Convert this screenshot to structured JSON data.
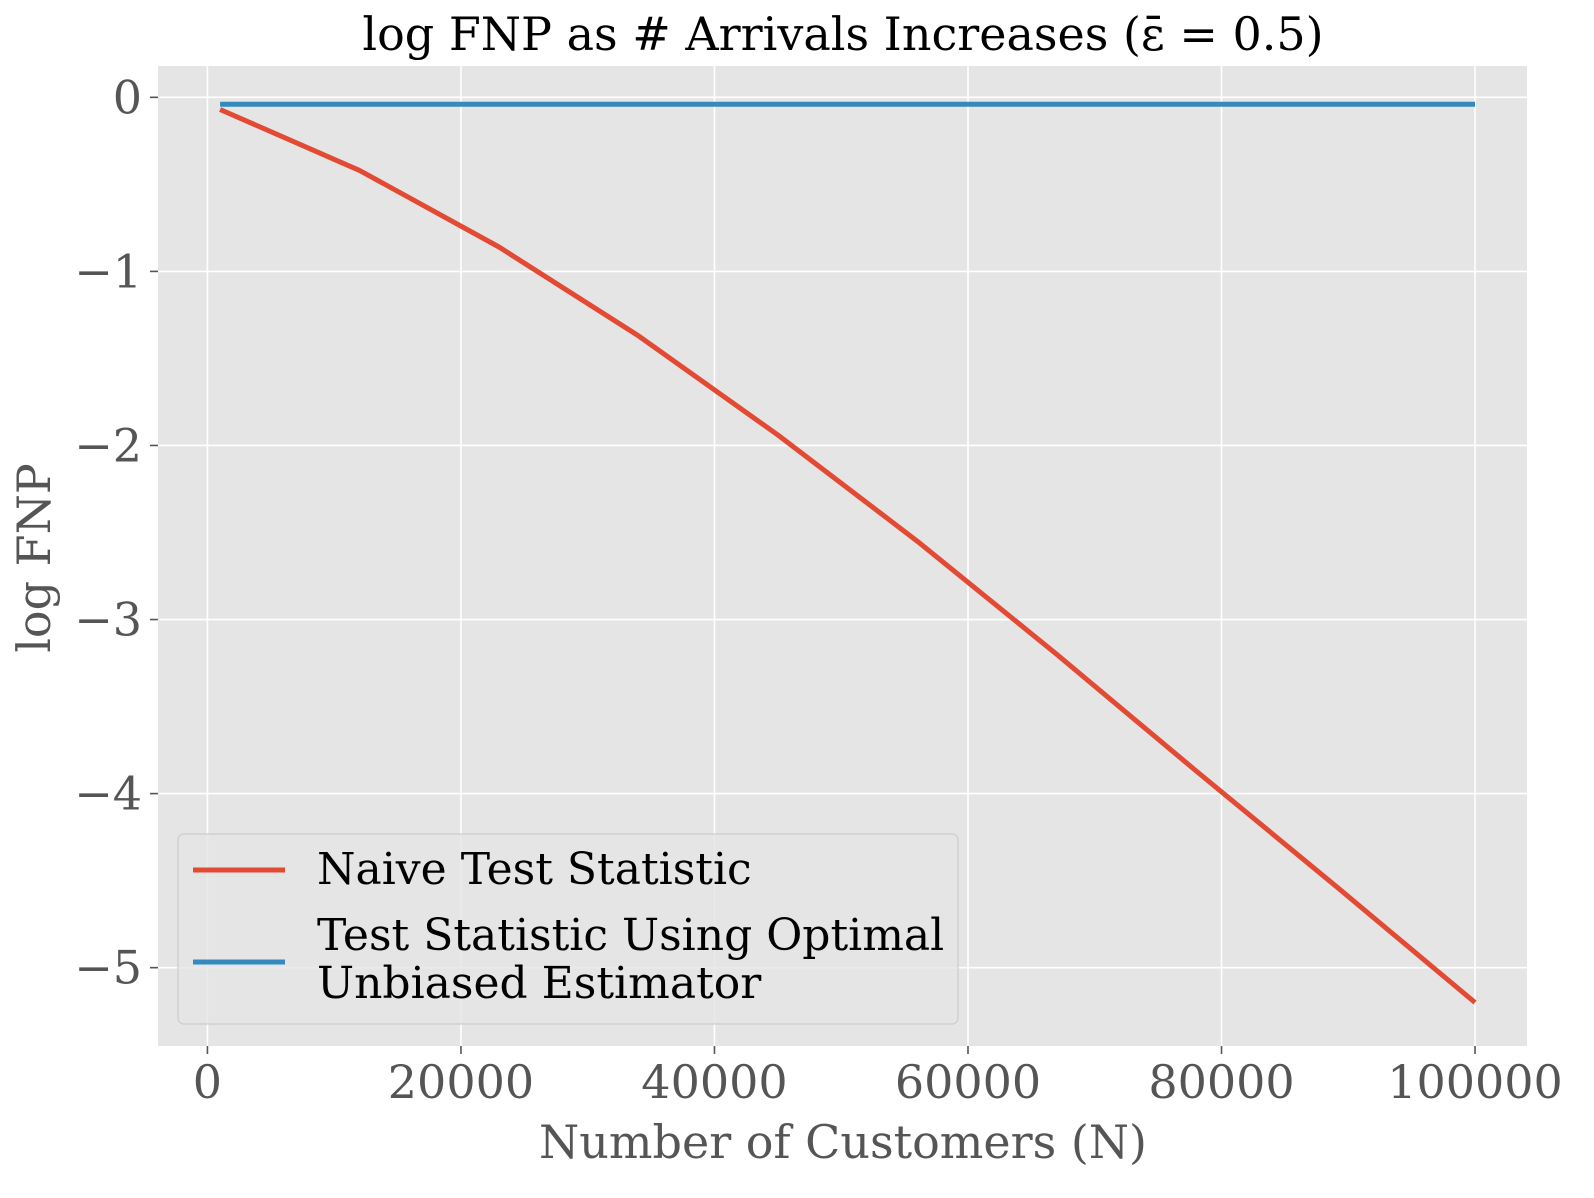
{
  "chart_data": {
    "type": "line",
    "title": "log FNP as # Arrivals Increases (ε̄ = 0.5)",
    "xlabel": "Number of Customers (N)",
    "ylabel": "log FNP",
    "xlim": [
      -3900,
      104100
    ],
    "ylim": [
      -5.45,
      0.18
    ],
    "xticks": [
      0,
      20000,
      40000,
      60000,
      80000,
      100000
    ],
    "xtick_labels": [
      "0",
      "20000",
      "40000",
      "60000",
      "80000",
      "100000"
    ],
    "yticks": [
      0,
      -1,
      -2,
      -3,
      -4,
      -5
    ],
    "ytick_labels": [
      "0",
      "−1",
      "−2",
      "−3",
      "−4",
      "−5"
    ],
    "grid": true,
    "legend_position": "lower-left",
    "colors": {
      "plot_bg": "#e5e5e5",
      "grid": "#ffffff",
      "text": "#555555",
      "title": "#000000"
    },
    "series": [
      {
        "name": "Naive Test Statistic",
        "color": "#e24a33",
        "x": [
          1000,
          12000,
          23000,
          34000,
          45000,
          56000,
          67000,
          78000,
          89000,
          100000
        ],
        "y": [
          -0.07,
          -0.42,
          -0.86,
          -1.37,
          -1.94,
          -2.55,
          -3.2,
          -3.87,
          -4.53,
          -5.2
        ]
      },
      {
        "name": "Test Statistic Using Optimal\nUnbiased Estimator",
        "color": "#348abd",
        "x": [
          1000,
          100000
        ],
        "y": [
          -0.04,
          -0.04
        ]
      }
    ]
  }
}
